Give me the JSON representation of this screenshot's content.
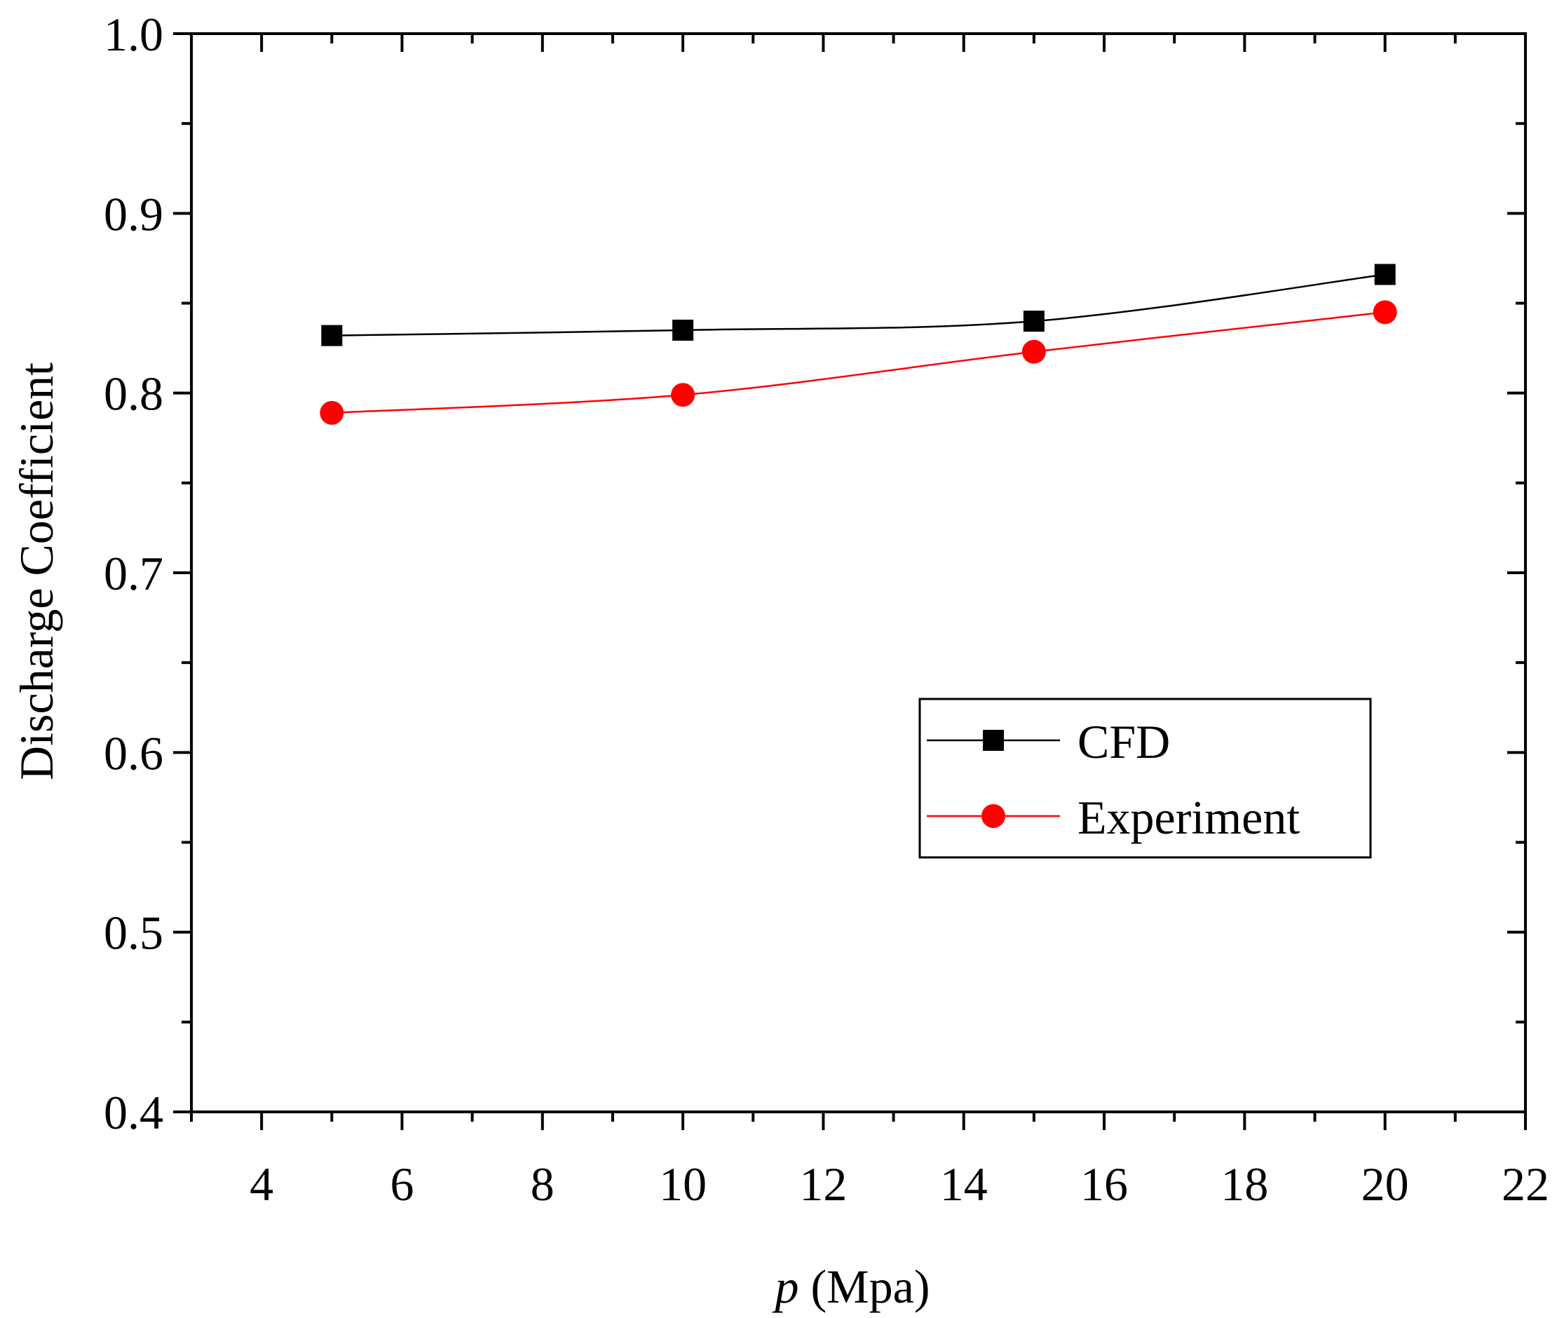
{
  "chart_data": {
    "type": "line",
    "title": "",
    "xlabel_var": "p",
    "xlabel_unit": " (Mpa)",
    "ylabel": "Discharge Coefficient",
    "xlim": [
      3,
      22
    ],
    "ylim": [
      0.4,
      1.0
    ],
    "x_ticks": [
      4,
      6,
      8,
      10,
      12,
      14,
      16,
      18,
      20,
      22
    ],
    "x_tick_labels": [
      "4",
      "6",
      "8",
      "10",
      "12",
      "14",
      "16",
      "18",
      "20",
      "22"
    ],
    "x_minor_ticks": [
      3,
      5,
      7,
      9,
      11,
      13,
      15,
      17,
      19,
      21
    ],
    "y_ticks": [
      0.4,
      0.5,
      0.6,
      0.7,
      0.8,
      0.9,
      1.0
    ],
    "y_tick_labels": [
      "0.4",
      "0.5",
      "0.6",
      "0.7",
      "0.8",
      "0.9",
      "1.0"
    ],
    "y_minor_ticks": [
      0.45,
      0.55,
      0.65,
      0.75,
      0.85,
      0.95
    ],
    "grid": false,
    "legend_position": "center-right",
    "x": [
      5,
      10,
      15,
      20
    ],
    "series": [
      {
        "name": "CFD",
        "values": [
          0.832,
          0.835,
          0.84,
          0.866
        ],
        "color": "#000000",
        "marker": "square"
      },
      {
        "name": "Experiment",
        "values": [
          0.789,
          0.799,
          0.823,
          0.845
        ],
        "color": "#ff0000",
        "marker": "circle"
      }
    ]
  }
}
